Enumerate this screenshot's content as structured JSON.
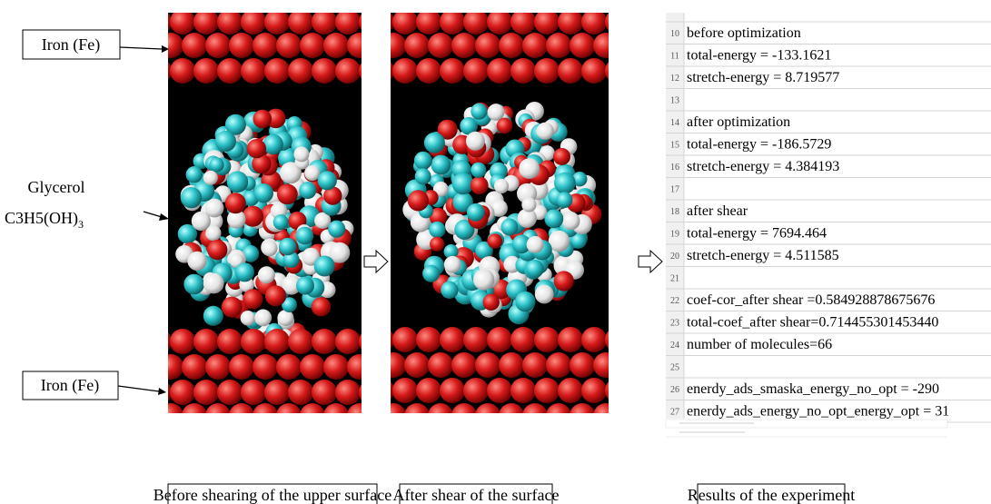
{
  "labels": {
    "iron_top": "Iron (Fe)",
    "glycerol": "Glycerol",
    "formula": "C3H5(OH)",
    "formula_sub": "3",
    "iron_bottom": "Iron (Fe)"
  },
  "spreadsheet": {
    "rows": [
      {
        "n": "10",
        "text": "before optimization"
      },
      {
        "n": "11",
        "text": "total-energy = -133.1621"
      },
      {
        "n": "12",
        "text": "stretch-energy = 8.719577"
      },
      {
        "n": "13"
      },
      {
        "n": "14",
        "text": "after optimization"
      },
      {
        "n": "15",
        "text": "total-energy = -186.5729"
      },
      {
        "n": "16",
        "text": "stretch-energy = 4.384193"
      },
      {
        "n": "17"
      },
      {
        "n": "18",
        "text": "after shear"
      },
      {
        "n": "19",
        "text": "total-energy = 7694.464"
      },
      {
        "n": "20",
        "text": "stretch-energy = 4.511585"
      },
      {
        "n": "21"
      },
      {
        "n": "22",
        "text": "coef-cor_after shear =0.584928878675676"
      },
      {
        "n": "23",
        "text": "total-coef_after shear=0.714455301453440"
      },
      {
        "n": "24",
        "text": "number of molecules=66"
      },
      {
        "n": "25"
      },
      {
        "n": "26",
        "text": "enerdy_ads_smaska_energy_no_opt = -290"
      },
      {
        "n": "27",
        "text": "enerdy_ads_energy_no_opt_energy_opt = 31"
      }
    ]
  },
  "captions": [
    "Before shearing of the upper surface",
    "After shear of the surface",
    "Results of the experiment"
  ]
}
